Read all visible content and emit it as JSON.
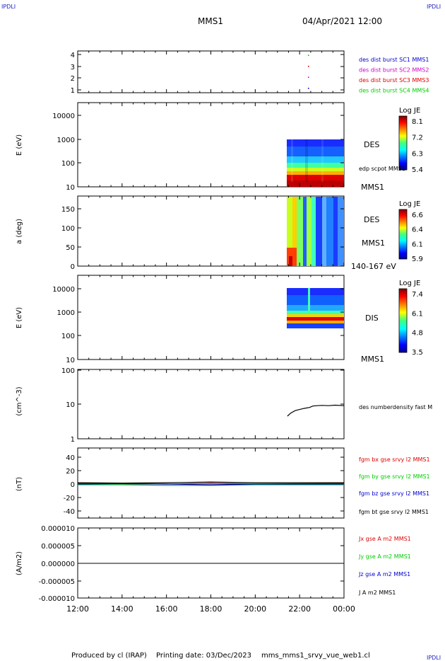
{
  "corner_marks": {
    "top_left": "IPDLI",
    "top_right": "IPDLI",
    "bottom_right": "IPDLI"
  },
  "header": {
    "title": "MMS1",
    "date": "04/Apr/2021 12:00"
  },
  "footer": {
    "producer": "Produced by cl (IRAP)",
    "printing_date": "Printing date: 03/Dec/2023",
    "filename": "mms_mms1_srvy_vue_web1.cl"
  },
  "colors": {
    "mms1": "#0000cc",
    "mms2": "#cc00cc",
    "mms3": "#dd0000",
    "mms4": "#00cc00",
    "bx": "#dd0000",
    "by": "#00cc00",
    "bz": "#0000cc",
    "bt": "#000000",
    "mark": "#2020c0"
  },
  "chart_data": [
    {
      "id": "availability",
      "type": "scatter",
      "y_ticks": [
        "1",
        "2",
        "3",
        "4"
      ],
      "labels": [
        {
          "text": "des dist burst SC1 MMS1",
          "color": "#0000cc"
        },
        {
          "text": "des dist burst SC2 MMS2",
          "color": "#cc00cc"
        },
        {
          "text": "des dist burst SC3 MMS3",
          "color": "#dd0000"
        },
        {
          "text": "des dist burst SC4 MMS4",
          "color": "#00cc00"
        }
      ],
      "series": [
        {
          "x": [
            22.4
          ],
          "y": [
            1
          ],
          "color": "#0000cc"
        },
        {
          "x": [
            22.4
          ],
          "y": [
            2
          ],
          "color": "#cc00cc"
        },
        {
          "x": [
            22.4
          ],
          "y": [
            3
          ],
          "color": "#dd0000"
        },
        {
          "x": [
            22.4
          ],
          "y": [
            4
          ],
          "color": "#00cc00"
        }
      ],
      "ylim": [
        0.6,
        4.4
      ]
    },
    {
      "id": "des-energy",
      "type": "heatmap",
      "ylabel": "E (eV)",
      "y_ticks": [
        "10",
        "100",
        "1000",
        "10000"
      ],
      "log_y": true,
      "ylim": [
        10,
        30000
      ],
      "data_x_range": [
        21.4,
        24.0
      ],
      "data_y_range": [
        10,
        1000
      ],
      "right_labels": [
        "DES",
        "edp scpot MMS1",
        "MMS1"
      ],
      "colorbar": {
        "title": "Log JE",
        "ticks": [
          "8.1",
          "7.2",
          "6.3",
          "5.4"
        ]
      }
    },
    {
      "id": "des-pitch",
      "type": "heatmap",
      "ylabel": "a (deg)",
      "y_ticks": [
        "0",
        "50",
        "100",
        "150"
      ],
      "ylim": [
        0,
        180
      ],
      "data_x_range": [
        21.4,
        24.0
      ],
      "right_labels": [
        "DES",
        "MMS1",
        "140-167 eV"
      ],
      "colorbar": {
        "title": "Log JE",
        "ticks": [
          "6.6",
          "6.4",
          "6.1",
          "5.9"
        ]
      }
    },
    {
      "id": "dis-energy",
      "type": "heatmap",
      "ylabel": "E (eV)",
      "y_ticks": [
        "10",
        "100",
        "1000",
        "10000"
      ],
      "log_y": true,
      "ylim": [
        10,
        30000
      ],
      "data_x_range": [
        21.4,
        24.0
      ],
      "data_y_range": [
        200,
        10000
      ],
      "right_labels": [
        "DIS",
        "MMS1"
      ],
      "colorbar": {
        "title": "Log JE",
        "ticks": [
          "7.4",
          "6.1",
          "4.8",
          "3.5"
        ]
      }
    },
    {
      "id": "density",
      "type": "line",
      "ylabel": "(cm^-3)",
      "y_ticks": [
        "1",
        "10",
        "100"
      ],
      "log_y": true,
      "ylim": [
        1,
        100
      ],
      "right_labels": [
        "des numberdensity fast M"
      ],
      "series": [
        {
          "x": [
            21.45,
            21.6,
            21.8,
            22.0,
            22.2,
            22.45,
            22.6,
            22.8,
            23.0,
            23.3,
            23.6,
            24.0
          ],
          "y": [
            4.5,
            5.5,
            6.5,
            7.0,
            7.5,
            8.0,
            8.8,
            9.0,
            9.2,
            9.0,
            9.3,
            9.0
          ]
        }
      ]
    },
    {
      "id": "magnetic-field",
      "type": "line",
      "ylabel": "(nT)",
      "y_ticks": [
        "-40",
        "-20",
        "0",
        "20",
        "40"
      ],
      "ylim": [
        -50,
        50
      ],
      "legend": [
        {
          "text": "fgm bx gse srvy l2 MMS1",
          "color": "#dd0000"
        },
        {
          "text": "fgm by gse srvy l2 MMS1",
          "color": "#00cc00"
        },
        {
          "text": "fgm bz gse srvy l2 MMS1",
          "color": "#0000cc"
        },
        {
          "text": "fgm bt gse srvy l2 MMS1",
          "color": "#000000"
        }
      ],
      "series": [
        {
          "name": "fgm bx gse srvy l2 MMS1",
          "color": "#dd0000",
          "x": [
            12,
            14,
            16,
            18,
            20,
            22,
            24
          ],
          "y": [
            1,
            0.5,
            0,
            1,
            0,
            0.5,
            1
          ]
        },
        {
          "name": "fgm by gse srvy l2 MMS1",
          "color": "#00cc00",
          "x": [
            12,
            14,
            16,
            18,
            20,
            22,
            24
          ],
          "y": [
            -1,
            -1,
            -2,
            -2,
            -1,
            -1,
            -1
          ]
        },
        {
          "name": "fgm bz gse srvy l2 MMS1",
          "color": "#0000cc",
          "x": [
            12,
            14,
            16,
            18,
            20,
            22,
            24
          ],
          "y": [
            0,
            0.5,
            0,
            -1,
            0,
            0,
            0
          ]
        },
        {
          "name": "fgm bt gse srvy l2 MMS1",
          "color": "#000000",
          "x": [
            12,
            14,
            16,
            18,
            20,
            22,
            24
          ],
          "y": [
            2,
            1.5,
            2,
            3,
            2,
            2,
            2
          ]
        }
      ]
    },
    {
      "id": "current-density",
      "type": "line",
      "ylabel": "(A/m2)",
      "y_ticks": [
        "-0.000010",
        "-0.000005",
        "0.000000",
        "0.000005",
        "0.000010"
      ],
      "ylim": [
        -1e-05,
        1e-05
      ],
      "legend": [
        {
          "text": "Jx gse A m2 MMS1",
          "color": "#dd0000"
        },
        {
          "text": "Jy gse A m2 MMS1",
          "color": "#00cc00"
        },
        {
          "text": "Jz gse A m2 MMS1",
          "color": "#0000cc"
        },
        {
          "text": "J A m2 MMS1",
          "color": "#000000"
        }
      ],
      "series": [
        {
          "name": "J A m2 MMS1",
          "color": "#000000",
          "x": [
            12,
            24
          ],
          "y": [
            0,
            0
          ]
        }
      ]
    }
  ],
  "x_axis": {
    "ticks": [
      "12:00",
      "14:00",
      "16:00",
      "18:00",
      "20:00",
      "22:00",
      "00:00"
    ],
    "hours": [
      12,
      14,
      16,
      18,
      20,
      22,
      24
    ]
  }
}
